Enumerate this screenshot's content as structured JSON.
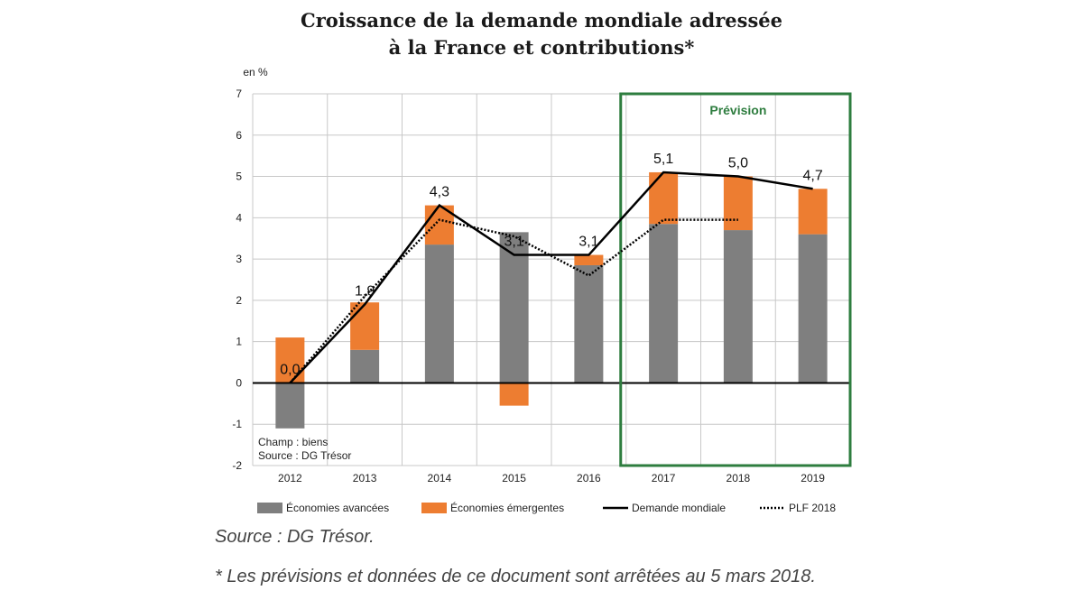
{
  "title_line1": "Croissance de la demande mondiale adressée",
  "title_line2": "à la France et contributions*",
  "colors": {
    "advanced": "#7f7f7f",
    "emerging": "#ed7d31",
    "world": "#000000",
    "plf": "#000000",
    "forecast_box": "#2e7d3f",
    "grid": "#c8c8c8"
  },
  "chart_data": {
    "type": "bar",
    "stacked": true,
    "unit_label": "en %",
    "categories": [
      "2012",
      "2013",
      "2014",
      "2015",
      "2016",
      "2017",
      "2018",
      "2019"
    ],
    "ylim": [
      -2,
      7
    ],
    "yticks": [
      "-2",
      "-1",
      "0",
      "1",
      "2",
      "3",
      "4",
      "5",
      "6",
      "7"
    ],
    "grid": true,
    "series": [
      {
        "name": "Économies avancées",
        "kind": "bar",
        "values": [
          -1.1,
          0.8,
          3.35,
          3.65,
          2.85,
          3.85,
          3.7,
          3.6
        ]
      },
      {
        "name": "Économies émergentes",
        "kind": "bar",
        "values": [
          1.1,
          1.15,
          0.95,
          -0.55,
          0.25,
          1.25,
          1.3,
          1.1
        ]
      },
      {
        "name": "Demande mondiale",
        "kind": "line",
        "values": [
          0.0,
          1.9,
          4.3,
          3.1,
          3.1,
          5.1,
          5.0,
          4.7
        ]
      },
      {
        "name": "PLF 2018",
        "kind": "dotted-line",
        "values": [
          0.0,
          2.1,
          3.95,
          3.55,
          2.6,
          3.95,
          3.95,
          null
        ]
      }
    ],
    "data_labels": [
      "0,0",
      "1,9",
      "4,3",
      "3,1",
      "3,1",
      "5,1",
      "5,0",
      "4,7"
    ],
    "forecast": {
      "label": "Prévision",
      "from": "2017",
      "to": "2019"
    },
    "annotation_lines": [
      "Champ : biens",
      "Source : DG Trésor"
    ],
    "legend_placement": "bottom"
  },
  "source": "Source : DG Trésor.",
  "footnote": "* Les prévisions et données de ce document sont arrêtées au 5 mars 2018."
}
